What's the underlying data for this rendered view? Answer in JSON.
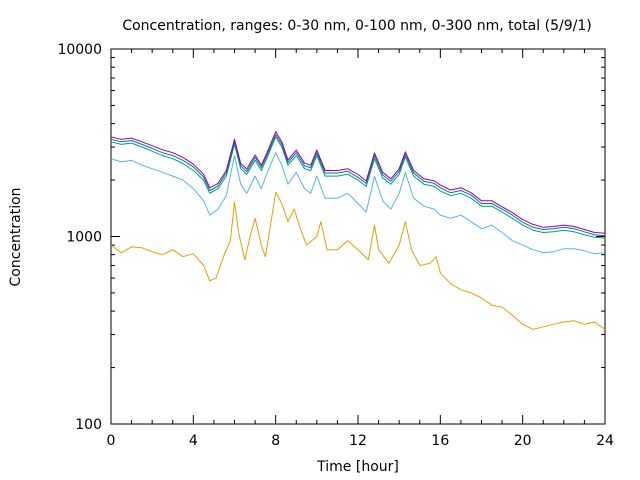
{
  "chart_data": {
    "type": "line",
    "title": "Concentration, ranges: 0-30 nm, 0-100 nm, 0-300 nm, total (5/9/1)",
    "xlabel": "Time [hour]",
    "ylabel": "Concentration",
    "x_range": [
      0,
      24
    ],
    "y_range": [
      100,
      10000
    ],
    "y_scale": "log",
    "x_ticks": [
      "0",
      "4",
      "8",
      "12",
      "16",
      "20",
      "24"
    ],
    "x_tick_values": [
      0,
      4,
      8,
      12,
      16,
      20,
      24
    ],
    "y_ticks": [
      "100",
      "1000",
      "10000"
    ],
    "y_tick_values": [
      100,
      1000,
      10000
    ],
    "grid": false,
    "legend": "none",
    "series": [
      {
        "color": "#e69f00",
        "points": [
          [
            0,
            900
          ],
          [
            0.5,
            820
          ],
          [
            1,
            880
          ],
          [
            1.5,
            870
          ],
          [
            2,
            830
          ],
          [
            2.5,
            800
          ],
          [
            3,
            850
          ],
          [
            3.5,
            780
          ],
          [
            4,
            810
          ],
          [
            4.5,
            700
          ],
          [
            4.8,
            580
          ],
          [
            5.1,
            600
          ],
          [
            5.5,
            800
          ],
          [
            5.8,
            950
          ],
          [
            6,
            1530
          ],
          [
            6.2,
            1050
          ],
          [
            6.5,
            750
          ],
          [
            6.8,
            1050
          ],
          [
            7,
            1250
          ],
          [
            7.3,
            900
          ],
          [
            7.5,
            780
          ],
          [
            7.8,
            1250
          ],
          [
            8,
            1720
          ],
          [
            8.3,
            1500
          ],
          [
            8.6,
            1200
          ],
          [
            8.9,
            1400
          ],
          [
            9.2,
            1100
          ],
          [
            9.5,
            900
          ],
          [
            10,
            1000
          ],
          [
            10.2,
            1200
          ],
          [
            10.5,
            850
          ],
          [
            11,
            850
          ],
          [
            11.5,
            950
          ],
          [
            12,
            850
          ],
          [
            12.5,
            750
          ],
          [
            12.8,
            1150
          ],
          [
            13,
            850
          ],
          [
            13.5,
            720
          ],
          [
            14,
            900
          ],
          [
            14.3,
            1200
          ],
          [
            14.6,
            850
          ],
          [
            15,
            700
          ],
          [
            15.5,
            720
          ],
          [
            15.8,
            780
          ],
          [
            16,
            640
          ],
          [
            16.5,
            560
          ],
          [
            17,
            520
          ],
          [
            17.5,
            500
          ],
          [
            18,
            470
          ],
          [
            18.5,
            430
          ],
          [
            19,
            420
          ],
          [
            19.5,
            380
          ],
          [
            20,
            340
          ],
          [
            20.5,
            320
          ],
          [
            21,
            330
          ],
          [
            21.5,
            340
          ],
          [
            22,
            350
          ],
          [
            22.5,
            355
          ],
          [
            23,
            340
          ],
          [
            23.5,
            350
          ],
          [
            24,
            320
          ]
        ]
      },
      {
        "color": "#56b4e9",
        "points": [
          [
            0,
            2600
          ],
          [
            0.5,
            2500
          ],
          [
            1,
            2550
          ],
          [
            1.5,
            2400
          ],
          [
            2,
            2300
          ],
          [
            2.5,
            2200
          ],
          [
            3,
            2100
          ],
          [
            3.5,
            2000
          ],
          [
            4,
            1800
          ],
          [
            4.5,
            1550
          ],
          [
            4.8,
            1300
          ],
          [
            5.2,
            1400
          ],
          [
            5.6,
            1650
          ],
          [
            6,
            2700
          ],
          [
            6.3,
            1900
          ],
          [
            6.6,
            1700
          ],
          [
            7,
            2100
          ],
          [
            7.3,
            1800
          ],
          [
            7.6,
            2200
          ],
          [
            8,
            2800
          ],
          [
            8.3,
            2400
          ],
          [
            8.6,
            1900
          ],
          [
            9,
            2200
          ],
          [
            9.4,
            1800
          ],
          [
            9.7,
            1700
          ],
          [
            10,
            2100
          ],
          [
            10.4,
            1600
          ],
          [
            11,
            1600
          ],
          [
            11.5,
            1700
          ],
          [
            12,
            1500
          ],
          [
            12.4,
            1350
          ],
          [
            12.8,
            2100
          ],
          [
            13.2,
            1550
          ],
          [
            13.6,
            1400
          ],
          [
            14,
            1700
          ],
          [
            14.3,
            2200
          ],
          [
            14.7,
            1600
          ],
          [
            15.2,
            1450
          ],
          [
            15.7,
            1400
          ],
          [
            16,
            1300
          ],
          [
            16.5,
            1250
          ],
          [
            17,
            1300
          ],
          [
            17.5,
            1200
          ],
          [
            18,
            1100
          ],
          [
            18.5,
            1150
          ],
          [
            19,
            1050
          ],
          [
            19.5,
            950
          ],
          [
            20,
            900
          ],
          [
            20.5,
            850
          ],
          [
            21,
            820
          ],
          [
            21.5,
            830
          ],
          [
            22,
            860
          ],
          [
            22.5,
            860
          ],
          [
            23,
            840
          ],
          [
            23.5,
            810
          ],
          [
            24,
            820
          ]
        ]
      },
      {
        "color": "#009e73",
        "points": [
          [
            0,
            3200
          ],
          [
            0.5,
            3100
          ],
          [
            1,
            3150
          ],
          [
            1.5,
            3000
          ],
          [
            2,
            2850
          ],
          [
            2.5,
            2700
          ],
          [
            3,
            2600
          ],
          [
            3.5,
            2450
          ],
          [
            4,
            2250
          ],
          [
            4.5,
            2000
          ],
          [
            4.8,
            1700
          ],
          [
            5.2,
            1800
          ],
          [
            5.6,
            2100
          ],
          [
            6,
            3100
          ],
          [
            6.3,
            2300
          ],
          [
            6.6,
            2150
          ],
          [
            7,
            2550
          ],
          [
            7.3,
            2250
          ],
          [
            7.6,
            2650
          ],
          [
            8,
            3400
          ],
          [
            8.3,
            3000
          ],
          [
            8.6,
            2400
          ],
          [
            9,
            2700
          ],
          [
            9.4,
            2300
          ],
          [
            9.7,
            2250
          ],
          [
            10,
            2700
          ],
          [
            10.4,
            2100
          ],
          [
            11,
            2100
          ],
          [
            11.5,
            2150
          ],
          [
            12,
            2000
          ],
          [
            12.4,
            1850
          ],
          [
            12.8,
            2600
          ],
          [
            13.2,
            2050
          ],
          [
            13.6,
            1900
          ],
          [
            14,
            2150
          ],
          [
            14.3,
            2650
          ],
          [
            14.7,
            2100
          ],
          [
            15.2,
            1900
          ],
          [
            15.7,
            1850
          ],
          [
            16,
            1750
          ],
          [
            16.5,
            1650
          ],
          [
            17,
            1700
          ],
          [
            17.5,
            1600
          ],
          [
            18,
            1450
          ],
          [
            18.5,
            1450
          ],
          [
            19,
            1350
          ],
          [
            19.5,
            1250
          ],
          [
            20,
            1150
          ],
          [
            20.5,
            1080
          ],
          [
            21,
            1050
          ],
          [
            21.5,
            1060
          ],
          [
            22,
            1080
          ],
          [
            22.5,
            1060
          ],
          [
            23,
            1020
          ],
          [
            23.5,
            990
          ],
          [
            24,
            980
          ]
        ]
      },
      {
        "color": "#0072b2",
        "points": [
          [
            0,
            3300
          ],
          [
            0.5,
            3200
          ],
          [
            1,
            3250
          ],
          [
            1.5,
            3100
          ],
          [
            2,
            2950
          ],
          [
            2.5,
            2800
          ],
          [
            3,
            2700
          ],
          [
            3.5,
            2550
          ],
          [
            4,
            2350
          ],
          [
            4.5,
            2080
          ],
          [
            4.8,
            1760
          ],
          [
            5.2,
            1860
          ],
          [
            5.6,
            2180
          ],
          [
            6,
            3200
          ],
          [
            6.3,
            2380
          ],
          [
            6.6,
            2220
          ],
          [
            7,
            2640
          ],
          [
            7.3,
            2330
          ],
          [
            7.6,
            2740
          ],
          [
            8,
            3500
          ],
          [
            8.3,
            3100
          ],
          [
            8.6,
            2480
          ],
          [
            9,
            2800
          ],
          [
            9.4,
            2380
          ],
          [
            9.7,
            2330
          ],
          [
            10,
            2800
          ],
          [
            10.4,
            2180
          ],
          [
            11,
            2180
          ],
          [
            11.5,
            2230
          ],
          [
            12,
            2070
          ],
          [
            12.4,
            1920
          ],
          [
            12.8,
            2700
          ],
          [
            13.2,
            2130
          ],
          [
            13.6,
            1970
          ],
          [
            14,
            2230
          ],
          [
            14.3,
            2740
          ],
          [
            14.7,
            2180
          ],
          [
            15.2,
            1970
          ],
          [
            15.7,
            1920
          ],
          [
            16,
            1820
          ],
          [
            16.5,
            1710
          ],
          [
            17,
            1760
          ],
          [
            17.5,
            1660
          ],
          [
            18,
            1500
          ],
          [
            18.5,
            1500
          ],
          [
            19,
            1400
          ],
          [
            19.5,
            1300
          ],
          [
            20,
            1190
          ],
          [
            20.5,
            1120
          ],
          [
            21,
            1090
          ],
          [
            21.5,
            1100
          ],
          [
            22,
            1120
          ],
          [
            22.5,
            1100
          ],
          [
            23,
            1060
          ],
          [
            23.5,
            1020
          ],
          [
            24,
            1010
          ]
        ]
      },
      {
        "color": "#990099",
        "points": [
          [
            0,
            3400
          ],
          [
            0.5,
            3300
          ],
          [
            1,
            3350
          ],
          [
            1.5,
            3200
          ],
          [
            2,
            3050
          ],
          [
            2.5,
            2900
          ],
          [
            3,
            2800
          ],
          [
            3.5,
            2640
          ],
          [
            4,
            2430
          ],
          [
            4.5,
            2150
          ],
          [
            4.8,
            1820
          ],
          [
            5.2,
            1920
          ],
          [
            5.6,
            2250
          ],
          [
            6,
            3300
          ],
          [
            6.3,
            2450
          ],
          [
            6.6,
            2290
          ],
          [
            7,
            2720
          ],
          [
            7.3,
            2400
          ],
          [
            7.6,
            2830
          ],
          [
            8,
            3620
          ],
          [
            8.3,
            3200
          ],
          [
            8.6,
            2560
          ],
          [
            9,
            2890
          ],
          [
            9.4,
            2460
          ],
          [
            9.7,
            2400
          ],
          [
            10,
            2890
          ],
          [
            10.4,
            2250
          ],
          [
            11,
            2250
          ],
          [
            11.5,
            2300
          ],
          [
            12,
            2140
          ],
          [
            12.4,
            1980
          ],
          [
            12.8,
            2790
          ],
          [
            13.2,
            2200
          ],
          [
            13.6,
            2030
          ],
          [
            14,
            2300
          ],
          [
            14.3,
            2830
          ],
          [
            14.7,
            2250
          ],
          [
            15.2,
            2030
          ],
          [
            15.7,
            1980
          ],
          [
            16,
            1880
          ],
          [
            16.5,
            1770
          ],
          [
            17,
            1820
          ],
          [
            17.5,
            1710
          ],
          [
            18,
            1550
          ],
          [
            18.5,
            1550
          ],
          [
            19,
            1440
          ],
          [
            19.5,
            1340
          ],
          [
            20,
            1230
          ],
          [
            20.5,
            1160
          ],
          [
            21,
            1120
          ],
          [
            21.5,
            1130
          ],
          [
            22,
            1150
          ],
          [
            22.5,
            1130
          ],
          [
            23,
            1090
          ],
          [
            23.5,
            1050
          ],
          [
            24,
            1040
          ]
        ]
      }
    ]
  }
}
